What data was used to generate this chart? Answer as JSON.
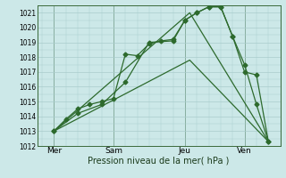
{
  "background_color": "#cce8e8",
  "grid_color": "#aacccc",
  "line_color": "#2d6a2d",
  "marker_color": "#2d6a2d",
  "xlabel": "Pression niveau de la mer( hPa )",
  "ylim": [
    1012,
    1021.5
  ],
  "yticks": [
    1012,
    1013,
    1014,
    1015,
    1016,
    1017,
    1018,
    1019,
    1020,
    1021
  ],
  "day_labels": [
    "Mer",
    "Sam",
    "Jeu",
    "Ven"
  ],
  "day_positions": [
    0.5,
    3.0,
    6.0,
    8.5
  ],
  "vline_positions": [
    0.5,
    3.0,
    6.0,
    8.5
  ],
  "xlim": [
    -0.2,
    10.0
  ],
  "series1_x": [
    0.5,
    1.0,
    1.5,
    2.0,
    2.5,
    3.0,
    3.5,
    4.0,
    4.5,
    5.0,
    5.5,
    6.0,
    6.5,
    7.0,
    7.5,
    8.0,
    8.5,
    9.0,
    9.5
  ],
  "series1_y": [
    1013.0,
    1013.8,
    1014.5,
    1014.8,
    1015.0,
    1015.2,
    1018.2,
    1018.1,
    1018.9,
    1019.1,
    1019.2,
    1020.5,
    1021.0,
    1021.4,
    1021.4,
    1019.4,
    1017.0,
    1016.8,
    1012.3
  ],
  "series2_x": [
    0.5,
    1.5,
    2.5,
    3.5,
    4.5,
    5.5,
    6.0,
    6.5,
    7.0,
    7.5,
    8.0,
    8.5,
    9.0,
    9.5
  ],
  "series2_y": [
    1013.0,
    1014.2,
    1014.8,
    1016.3,
    1019.0,
    1019.1,
    1020.5,
    1021.0,
    1021.4,
    1021.4,
    1019.4,
    1017.5,
    1014.8,
    1012.3
  ],
  "series3_x": [
    0.5,
    6.2,
    9.5
  ],
  "series3_y": [
    1013.0,
    1021.0,
    1012.3
  ],
  "series4_x": [
    0.5,
    6.2,
    9.5
  ],
  "series4_y": [
    1013.0,
    1017.8,
    1012.3
  ],
  "ytick_fontsize": 5.5,
  "xtick_fontsize": 6.5,
  "xlabel_fontsize": 7.0
}
